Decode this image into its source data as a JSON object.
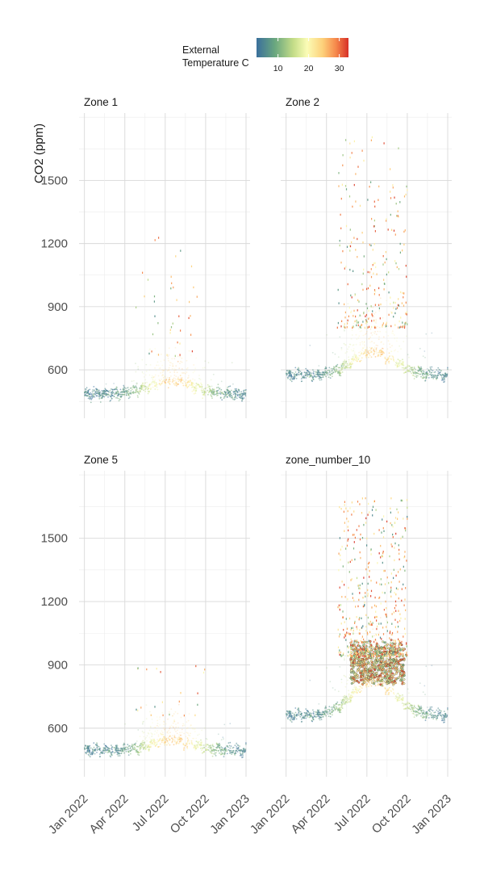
{
  "chart_data": {
    "type": "scatter",
    "ylabel": "CO2 (ppm)",
    "xlabel": "",
    "x_ticks": [
      "Jan 2022",
      "Apr 2022",
      "Jul 2022",
      "Oct 2022",
      "Jan 2023"
    ],
    "x_range_months": [
      -0.4,
      12.3
    ],
    "ylim": [
      370,
      1820
    ],
    "y_ticks": [
      600,
      900,
      1200,
      1500
    ],
    "grid": true,
    "legend": {
      "title_line1": "External",
      "title_line2": "Temperature C",
      "ticks": [
        "10",
        "20",
        "30"
      ],
      "tick_values": [
        10,
        20,
        30
      ],
      "range": [
        3,
        33
      ],
      "colors": [
        "#3a6f9c",
        "#6aa77f",
        "#c4dd88",
        "#fbfcb6",
        "#fdd07a",
        "#f68a4c",
        "#d73027"
      ],
      "placement": "top-center"
    },
    "panels": [
      {
        "title": "Zone 1",
        "baseline_winter": 485,
        "baseline_summer": 545,
        "summer_spread": 160,
        "spike_max": 1250,
        "spike_count": 40,
        "dense": false
      },
      {
        "title": "Zone 2",
        "baseline_winter": 575,
        "baseline_summer": 680,
        "summer_spread": 220,
        "spike_max": 1720,
        "spike_count": 260,
        "dense": false
      },
      {
        "title": "Zone 5",
        "baseline_winter": 495,
        "baseline_summer": 540,
        "summer_spread": 140,
        "spike_max": 930,
        "spike_count": 22,
        "dense": false
      },
      {
        "title": "zone_number_10",
        "baseline_winter": 660,
        "baseline_summer": 820,
        "summer_spread": 260,
        "spike_max": 1690,
        "spike_count": 520,
        "dense": true
      }
    ]
  }
}
